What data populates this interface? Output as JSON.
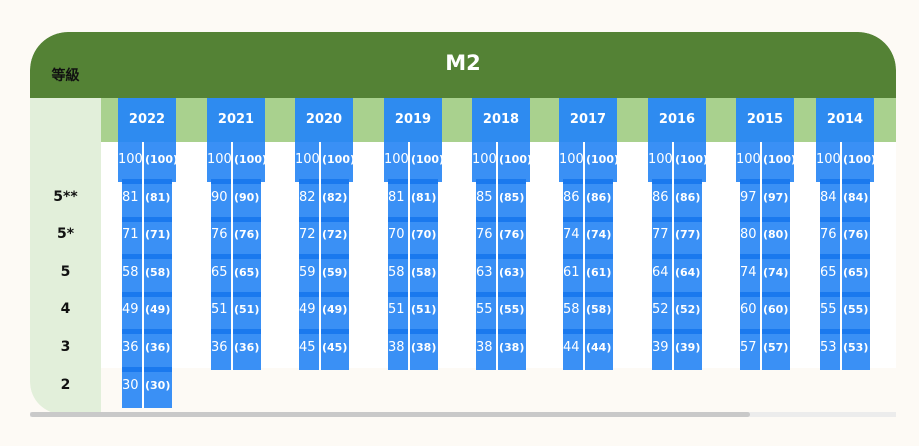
{
  "title": "M2",
  "grade_header": "等級",
  "grades": [
    "5**",
    "5*",
    "5",
    "4",
    "3",
    "2"
  ],
  "top_score": {
    "value": "100",
    "bracket": "(100)"
  },
  "years": [
    {
      "year": "2022",
      "scores": [
        {
          "value": "81",
          "bracket": "(81)"
        },
        {
          "value": "71",
          "bracket": "(71)"
        },
        {
          "value": "58",
          "bracket": "(58)"
        },
        {
          "value": "49",
          "bracket": "(49)"
        },
        {
          "value": "36",
          "bracket": "(36)"
        },
        {
          "value": "30",
          "bracket": "(30)"
        }
      ]
    },
    {
      "year": "2021",
      "scores": [
        {
          "value": "90",
          "bracket": "(90)"
        },
        {
          "value": "76",
          "bracket": "(76)"
        },
        {
          "value": "65",
          "bracket": "(65)"
        },
        {
          "value": "51",
          "bracket": "(51)"
        },
        {
          "value": "36",
          "bracket": "(36)"
        }
      ]
    },
    {
      "year": "2020",
      "scores": [
        {
          "value": "82",
          "bracket": "(82)"
        },
        {
          "value": "72",
          "bracket": "(72)"
        },
        {
          "value": "59",
          "bracket": "(59)"
        },
        {
          "value": "49",
          "bracket": "(49)"
        },
        {
          "value": "45",
          "bracket": "(45)"
        }
      ]
    },
    {
      "year": "2019",
      "scores": [
        {
          "value": "81",
          "bracket": "(81)"
        },
        {
          "value": "70",
          "bracket": "(70)"
        },
        {
          "value": "58",
          "bracket": "(58)"
        },
        {
          "value": "51",
          "bracket": "(51)"
        },
        {
          "value": "38",
          "bracket": "(38)"
        }
      ]
    },
    {
      "year": "2018",
      "scores": [
        {
          "value": "85",
          "bracket": "(85)"
        },
        {
          "value": "76",
          "bracket": "(76)"
        },
        {
          "value": "63",
          "bracket": "(63)"
        },
        {
          "value": "55",
          "bracket": "(55)"
        },
        {
          "value": "38",
          "bracket": "(38)"
        }
      ]
    },
    {
      "year": "2017",
      "scores": [
        {
          "value": "86",
          "bracket": "(86)"
        },
        {
          "value": "74",
          "bracket": "(74)"
        },
        {
          "value": "61",
          "bracket": "(61)"
        },
        {
          "value": "58",
          "bracket": "(58)"
        },
        {
          "value": "44",
          "bracket": "(44)"
        }
      ]
    },
    {
      "year": "2016",
      "scores": [
        {
          "value": "86",
          "bracket": "(86)"
        },
        {
          "value": "77",
          "bracket": "(77)"
        },
        {
          "value": "64",
          "bracket": "(64)"
        },
        {
          "value": "52",
          "bracket": "(52)"
        },
        {
          "value": "39",
          "bracket": "(39)"
        }
      ]
    },
    {
      "year": "2015",
      "scores": [
        {
          "value": "97",
          "bracket": "(97)"
        },
        {
          "value": "80",
          "bracket": "(80)"
        },
        {
          "value": "74",
          "bracket": "(74)"
        },
        {
          "value": "60",
          "bracket": "(60)"
        },
        {
          "value": "57",
          "bracket": "(57)"
        }
      ]
    },
    {
      "year": "2014",
      "scores": [
        {
          "value": "84",
          "bracket": "(84)"
        },
        {
          "value": "76",
          "bracket": "(76)"
        },
        {
          "value": "65",
          "bracket": "(65)"
        },
        {
          "value": "55",
          "bracket": "(55)"
        },
        {
          "value": "53",
          "bracket": "(53)"
        }
      ]
    }
  ],
  "colors": {
    "header": "#548235",
    "year_band": "#a9d18e",
    "grade_col": "#e2efda",
    "bar": "#3a90f5",
    "year_box": "#2e8bf0"
  }
}
